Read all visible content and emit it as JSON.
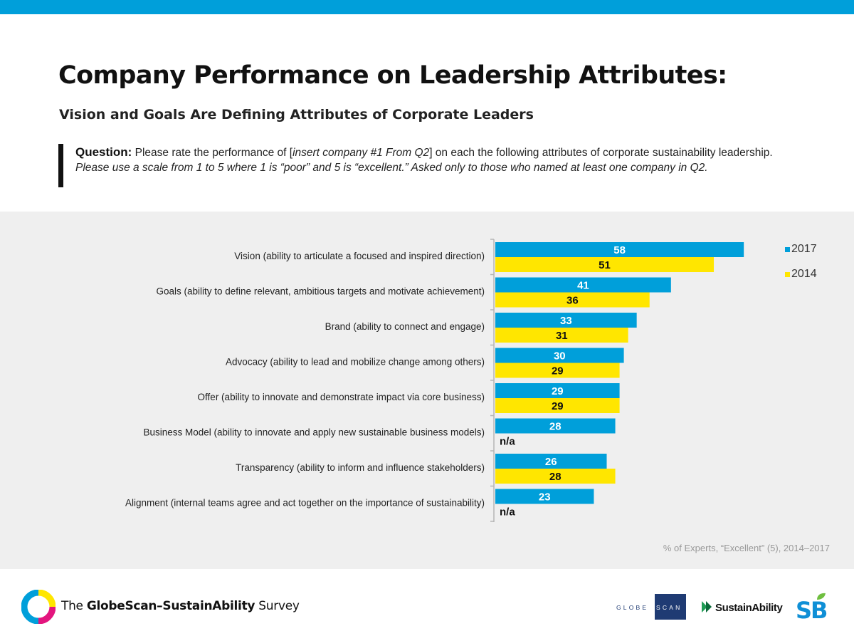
{
  "header": {
    "title": "Company Performance on Leadership Attributes:",
    "subtitle": "Vision and Goals Are Defining Attributes of Corporate Leaders"
  },
  "question": {
    "label": "Question:",
    "text1": " Please rate the performance of [",
    "text2": "insert company #1 From Q2",
    "text3": "] on each the following attributes of corporate sustainability leadership. ",
    "text4": "Please use a scale from 1 to 5 where 1 is “poor” and 5 is “excellent.” Asked only to those who named at least one company in Q2."
  },
  "chart_data": {
    "type": "bar",
    "orientation": "horizontal",
    "categories": [
      "Vision (ability to articulate a focused and inspired direction)",
      "Goals (ability to define relevant, ambitious targets and motivate achievement)",
      "Brand (ability to connect and engage)",
      "Advocacy (ability to lead and mobilize change among others)",
      "Offer (ability to innovate and demonstrate impact via core business)",
      "Business Model (ability to innovate and apply new sustainable business models)",
      "Transparency (ability to inform and influence stakeholders)",
      "Alignment (internal teams agree and act together on the importance of sustainability)"
    ],
    "series": [
      {
        "name": "2017",
        "color": "#009fda",
        "values": [
          58,
          41,
          33,
          30,
          29,
          28,
          26,
          23
        ]
      },
      {
        "name": "2014",
        "color": "#ffe600",
        "values": [
          51,
          36,
          31,
          29,
          29,
          null,
          28,
          null
        ]
      }
    ],
    "missing_label": "n/a",
    "legend_position": "top-right",
    "note": "% of Experts, “Excellent” (5), 2014–2017",
    "xlim": [
      0,
      100
    ]
  },
  "footer": {
    "survey_prefix": "The ",
    "survey_name": "GlobeScan–SustainAbility",
    "survey_suffix": " Survey",
    "globescan_logo_text": "GLOBESCAN",
    "sustainability_logo_text": "SustainAbility"
  }
}
